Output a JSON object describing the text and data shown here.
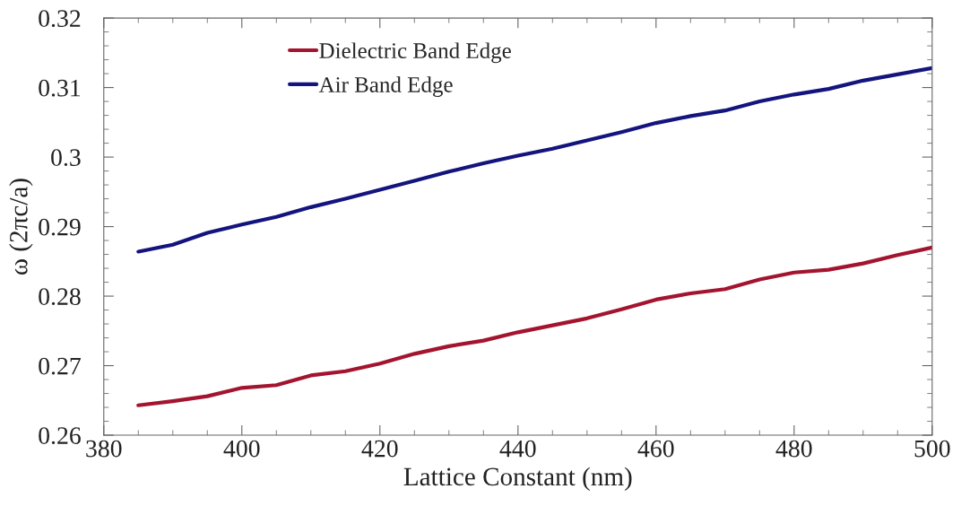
{
  "chart_data": {
    "type": "line",
    "xlabel": "Lattice Constant (nm)",
    "ylabel": "ω (2πc/a)",
    "x": [
      385,
      390,
      395,
      400,
      405,
      410,
      415,
      420,
      425,
      430,
      435,
      440,
      445,
      450,
      455,
      460,
      465,
      470,
      475,
      480,
      485,
      490,
      495,
      500
    ],
    "series": [
      {
        "name": "Dielectric Band Edge",
        "color": "#a3142f",
        "values": [
          0.2643,
          0.2649,
          0.2656,
          0.2668,
          0.2672,
          0.2686,
          0.2692,
          0.2703,
          0.2717,
          0.2728,
          0.2736,
          0.2748,
          0.2758,
          0.2768,
          0.2781,
          0.2795,
          0.2804,
          0.281,
          0.2824,
          0.2834,
          0.2838,
          0.2847,
          0.2859,
          0.287
        ]
      },
      {
        "name": "Air Band Edge",
        "color": "#14147e",
        "values": [
          0.2864,
          0.2874,
          0.2891,
          0.2903,
          0.2914,
          0.2928,
          0.294,
          0.2953,
          0.2966,
          0.2979,
          0.2991,
          0.3002,
          0.3012,
          0.3024,
          0.3036,
          0.3049,
          0.3059,
          0.3067,
          0.308,
          0.309,
          0.3098,
          0.311,
          0.3119,
          0.3128
        ]
      }
    ],
    "xlim": [
      380,
      500
    ],
    "ylim": [
      0.26,
      0.32
    ],
    "xticks": [
      380,
      {
        "value": 385,
        "label": null
      },
      {
        "value": 390,
        "label": null
      },
      {
        "value": 395,
        "label": null
      },
      400,
      {
        "value": 405,
        "label": null
      },
      {
        "value": 410,
        "label": null
      },
      {
        "value": 415,
        "label": null
      },
      420,
      {
        "value": 425,
        "label": null
      },
      {
        "value": 430,
        "label": null
      },
      {
        "value": 435,
        "label": null
      },
      440,
      {
        "value": 445,
        "label": null
      },
      {
        "value": 450,
        "label": null
      },
      {
        "value": 455,
        "label": null
      },
      460,
      {
        "value": 465,
        "label": null
      },
      {
        "value": 470,
        "label": null
      },
      {
        "value": 475,
        "label": null
      },
      480,
      {
        "value": 485,
        "label": null
      },
      {
        "value": 490,
        "label": null
      },
      {
        "value": 495,
        "label": null
      },
      500
    ],
    "yticks": [
      0.26,
      {
        "value": 0.262,
        "label": null
      },
      {
        "value": 0.264,
        "label": null
      },
      {
        "value": 0.266,
        "label": null
      },
      {
        "value": 0.268,
        "label": null
      },
      0.27,
      {
        "value": 0.272,
        "label": null
      },
      {
        "value": 0.274,
        "label": null
      },
      {
        "value": 0.276,
        "label": null
      },
      {
        "value": 0.278,
        "label": null
      },
      0.28,
      {
        "value": 0.282,
        "label": null
      },
      {
        "value": 0.284,
        "label": null
      },
      {
        "value": 0.286,
        "label": null
      },
      {
        "value": 0.288,
        "label": null
      },
      0.29,
      {
        "value": 0.292,
        "label": null
      },
      {
        "value": 0.294,
        "label": null
      },
      {
        "value": 0.296,
        "label": null
      },
      {
        "value": 0.298,
        "label": null
      },
      0.3,
      {
        "value": 0.302,
        "label": null
      },
      {
        "value": 0.304,
        "label": null
      },
      {
        "value": 0.306,
        "label": null
      },
      {
        "value": 0.308,
        "label": null
      },
      0.31,
      {
        "value": 0.312,
        "label": null
      },
      {
        "value": 0.314,
        "label": null
      },
      {
        "value": 0.316,
        "label": null
      },
      {
        "value": 0.318,
        "label": null
      },
      0.32
    ],
    "grid": false,
    "legend": "top left",
    "marker": "none",
    "line_style": "solid"
  }
}
